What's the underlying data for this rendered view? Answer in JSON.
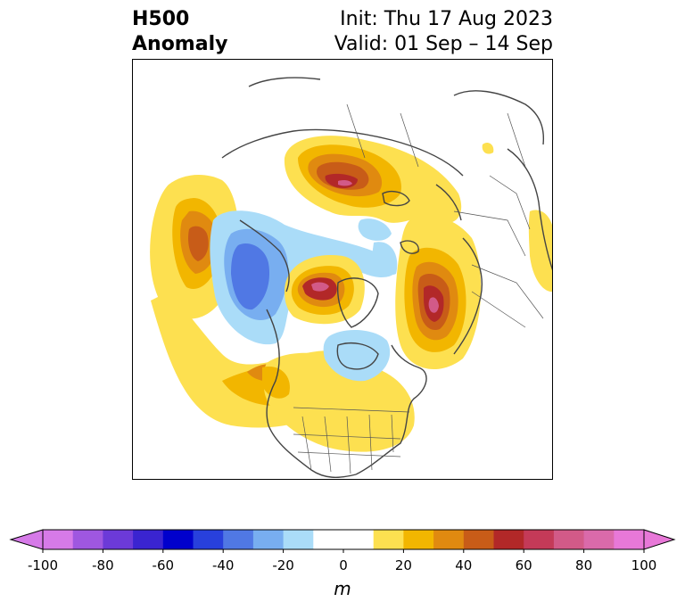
{
  "title": {
    "left_line1": "H500",
    "left_line2": "Anomaly",
    "right_line1": "Init: Thu 17 Aug 2023",
    "right_line2": "Valid: 01 Sep – 14 Sep"
  },
  "colorbar": {
    "unit": "m",
    "ticks": [
      "-100",
      "-80",
      "-60",
      "-40",
      "-20",
      "0",
      "20",
      "40",
      "60",
      "80",
      "100"
    ],
    "range": [
      -100,
      100
    ],
    "step": 10,
    "colors": [
      "#d67ae8",
      "#9f57e0",
      "#6c3ad8",
      "#3a24d0",
      "#0000cc",
      "#2840dc",
      "#5078e4",
      "#78aef0",
      "#aadcf8",
      "#ffffff",
      "#ffffff",
      "#fde050",
      "#f2b600",
      "#e08a10",
      "#c85c18",
      "#b22828",
      "#c43a58",
      "#d25a88",
      "#da6aaa",
      "#e878d8"
    ]
  },
  "map": {
    "projection": "north-polar-stereographic",
    "features": [
      "coastlines",
      "country-borders",
      "us-state-borders"
    ]
  }
}
